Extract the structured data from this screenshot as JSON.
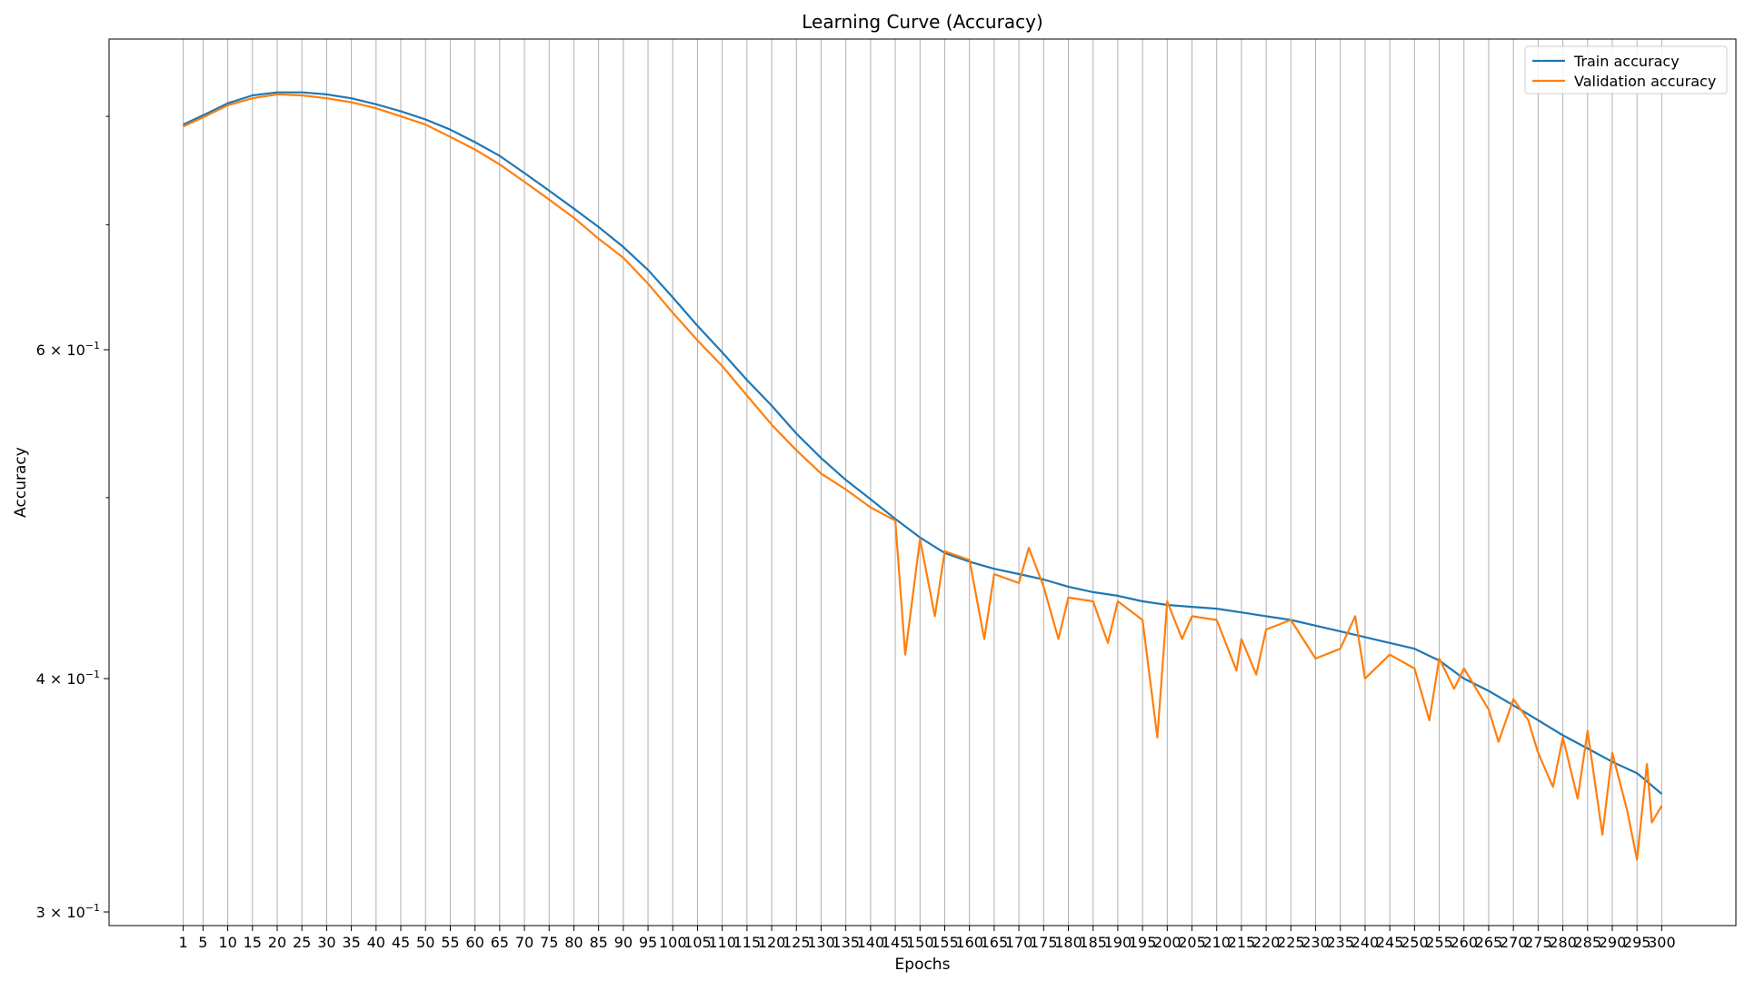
{
  "chart_data": {
    "type": "line",
    "title": "Learning Curve (Accuracy)",
    "xlabel": "Epochs",
    "ylabel": "Accuracy",
    "yscale": "log",
    "xlim": [
      -14,
      315
    ],
    "ylim": [
      0.295,
      0.88
    ],
    "grid": "x-only",
    "legend": "top-right",
    "x_ticks": [
      1,
      5,
      10,
      15,
      20,
      25,
      30,
      35,
      40,
      45,
      50,
      55,
      60,
      65,
      70,
      75,
      80,
      85,
      90,
      95,
      100,
      105,
      110,
      115,
      120,
      125,
      130,
      135,
      140,
      145,
      150,
      155,
      160,
      165,
      170,
      175,
      180,
      185,
      190,
      195,
      200,
      205,
      210,
      215,
      220,
      225,
      230,
      235,
      240,
      245,
      250,
      255,
      260,
      265,
      270,
      275,
      280,
      285,
      290,
      295,
      300
    ],
    "x_tick_labels": [
      "1",
      "5",
      "10",
      "15",
      "20",
      "25",
      "30",
      "35",
      "40",
      "45",
      "50",
      "55",
      "60",
      "65",
      "70",
      "75",
      "80",
      "85",
      "90",
      "95",
      "100",
      "105",
      "110",
      "115",
      "120",
      "125",
      "130",
      "135",
      "140",
      "145",
      "150",
      "155",
      "160",
      "165",
      "170",
      "175",
      "180",
      "185",
      "190",
      "195",
      "200",
      "205",
      "210",
      "215",
      "220",
      "225",
      "230",
      "235",
      "240",
      "245",
      "250",
      "255",
      "260",
      "265",
      "270",
      "275",
      "280",
      "285",
      "290",
      "295",
      "300"
    ],
    "y_ticks": [
      {
        "value": 0.3,
        "mantissa": "3",
        "exponent": "−1"
      },
      {
        "value": 0.4,
        "mantissa": "4",
        "exponent": "−1"
      },
      {
        "value": 0.6,
        "mantissa": "6",
        "exponent": "−1"
      }
    ],
    "y_minor_ticks": [
      0.5,
      0.7,
      0.8
    ],
    "series": [
      {
        "name": "Train accuracy",
        "color": "#1f77b4",
        "x": [
          1,
          5,
          10,
          15,
          20,
          25,
          30,
          35,
          40,
          45,
          50,
          55,
          60,
          65,
          70,
          75,
          80,
          85,
          90,
          95,
          100,
          105,
          110,
          115,
          120,
          125,
          130,
          135,
          140,
          145,
          150,
          155,
          160,
          165,
          170,
          175,
          180,
          185,
          190,
          195,
          200,
          205,
          210,
          215,
          220,
          225,
          230,
          235,
          240,
          245,
          250,
          255,
          260,
          265,
          270,
          275,
          280,
          285,
          290,
          295,
          300
        ],
        "y": [
          0.792,
          0.801,
          0.813,
          0.821,
          0.824,
          0.824,
          0.822,
          0.818,
          0.812,
          0.805,
          0.797,
          0.787,
          0.775,
          0.762,
          0.746,
          0.73,
          0.714,
          0.698,
          0.681,
          0.662,
          0.64,
          0.618,
          0.598,
          0.578,
          0.56,
          0.541,
          0.525,
          0.511,
          0.499,
          0.487,
          0.476,
          0.467,
          0.462,
          0.458,
          0.455,
          0.452,
          0.448,
          0.445,
          0.443,
          0.44,
          0.438,
          0.437,
          0.436,
          0.434,
          0.432,
          0.43,
          0.427,
          0.424,
          0.421,
          0.418,
          0.415,
          0.409,
          0.4,
          0.394,
          0.387,
          0.38,
          0.373,
          0.367,
          0.361,
          0.356,
          0.347
        ]
      },
      {
        "name": "Validation accuracy",
        "color": "#ff7f0e",
        "x": [
          1,
          5,
          10,
          15,
          20,
          25,
          30,
          35,
          40,
          45,
          50,
          55,
          60,
          65,
          70,
          75,
          80,
          85,
          90,
          95,
          100,
          105,
          110,
          115,
          120,
          125,
          130,
          135,
          140,
          145,
          147,
          150,
          153,
          155,
          160,
          163,
          165,
          170,
          172,
          175,
          178,
          180,
          185,
          188,
          190,
          195,
          198,
          200,
          203,
          205,
          210,
          214,
          215,
          218,
          220,
          225,
          230,
          235,
          238,
          240,
          245,
          250,
          253,
          255,
          258,
          260,
          265,
          267,
          270,
          273,
          275,
          278,
          280,
          283,
          285,
          288,
          290,
          293,
          295,
          297,
          298,
          300
        ],
        "y": [
          0.79,
          0.799,
          0.811,
          0.818,
          0.822,
          0.821,
          0.818,
          0.814,
          0.808,
          0.8,
          0.792,
          0.78,
          0.768,
          0.754,
          0.738,
          0.722,
          0.706,
          0.688,
          0.672,
          0.651,
          0.628,
          0.607,
          0.588,
          0.567,
          0.547,
          0.53,
          0.515,
          0.505,
          0.494,
          0.486,
          0.412,
          0.475,
          0.432,
          0.468,
          0.463,
          0.42,
          0.455,
          0.45,
          0.47,
          0.448,
          0.42,
          0.442,
          0.44,
          0.418,
          0.44,
          0.43,
          0.372,
          0.44,
          0.42,
          0.432,
          0.43,
          0.404,
          0.42,
          0.402,
          0.425,
          0.43,
          0.41,
          0.415,
          0.432,
          0.4,
          0.412,
          0.405,
          0.38,
          0.41,
          0.395,
          0.405,
          0.385,
          0.37,
          0.39,
          0.38,
          0.365,
          0.35,
          0.372,
          0.345,
          0.375,
          0.33,
          0.365,
          0.34,
          0.32,
          0.36,
          0.335,
          0.342
        ]
      }
    ]
  }
}
